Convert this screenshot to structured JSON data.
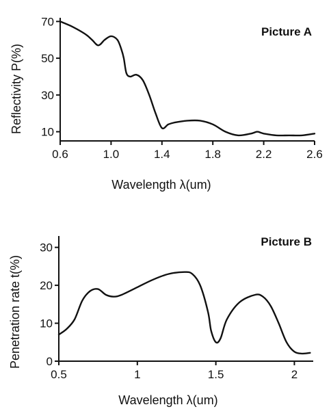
{
  "chart_data": [
    {
      "type": "line",
      "title": "Picture A",
      "xlabel": "Wavelength λ(um)",
      "ylabel": "Reflectivity P(%)",
      "xlim": [
        0.6,
        2.6
      ],
      "ylim": [
        5,
        72
      ],
      "xticks": [
        0.6,
        1.0,
        1.4,
        1.8,
        2.2,
        2.6
      ],
      "xtick_labels": [
        "0.6",
        "1.0",
        "1.4",
        "1.8",
        "2.2",
        "2.6"
      ],
      "yticks": [
        10,
        30,
        50,
        70
      ],
      "ytick_labels": [
        "10",
        "30",
        "50",
        "70"
      ],
      "grid": false,
      "series": [
        {
          "x": [
            0.6,
            0.7,
            0.8,
            0.85,
            0.9,
            0.95,
            1.0,
            1.05,
            1.08,
            1.1,
            1.12,
            1.15,
            1.2,
            1.25,
            1.3,
            1.35,
            1.4,
            1.45,
            1.5,
            1.6,
            1.7,
            1.8,
            1.9,
            2.0,
            2.1,
            2.15,
            2.2,
            2.3,
            2.4,
            2.5,
            2.6
          ],
          "y": [
            70,
            67,
            63,
            60,
            57,
            60,
            62,
            60,
            55,
            50,
            42,
            40,
            41,
            38,
            30,
            20,
            12,
            14,
            15,
            16,
            16,
            14,
            10,
            8,
            9,
            10,
            9,
            8,
            8,
            8,
            9
          ]
        }
      ]
    },
    {
      "type": "line",
      "title": "Picture B",
      "xlabel": "Wavelength λ(um)",
      "ylabel": "Penetration rate t(%)",
      "xlim": [
        0.5,
        2.12
      ],
      "ylim": [
        0,
        33
      ],
      "xticks": [
        0.5,
        1,
        1.5,
        2
      ],
      "xtick_labels": [
        "0.5",
        "1",
        "1.5",
        "2"
      ],
      "yticks": [
        0,
        10,
        20,
        30
      ],
      "ytick_labels": [
        "0",
        "10",
        "20",
        "30"
      ],
      "grid": false,
      "series": [
        {
          "x": [
            0.5,
            0.55,
            0.6,
            0.65,
            0.7,
            0.75,
            0.8,
            0.85,
            0.9,
            1.0,
            1.1,
            1.2,
            1.3,
            1.35,
            1.4,
            1.45,
            1.47,
            1.5,
            1.53,
            1.57,
            1.65,
            1.75,
            1.8,
            1.85,
            1.9,
            1.95,
            2.0,
            2.05,
            2.1
          ],
          "y": [
            7,
            8.5,
            11,
            16,
            18.5,
            19,
            17.5,
            17,
            17.5,
            19.5,
            21.5,
            23,
            23.5,
            23,
            20,
            13,
            8,
            5,
            6,
            11,
            15.5,
            17.5,
            17,
            14.5,
            10,
            5,
            2.5,
            2,
            2.2
          ]
        }
      ]
    }
  ]
}
